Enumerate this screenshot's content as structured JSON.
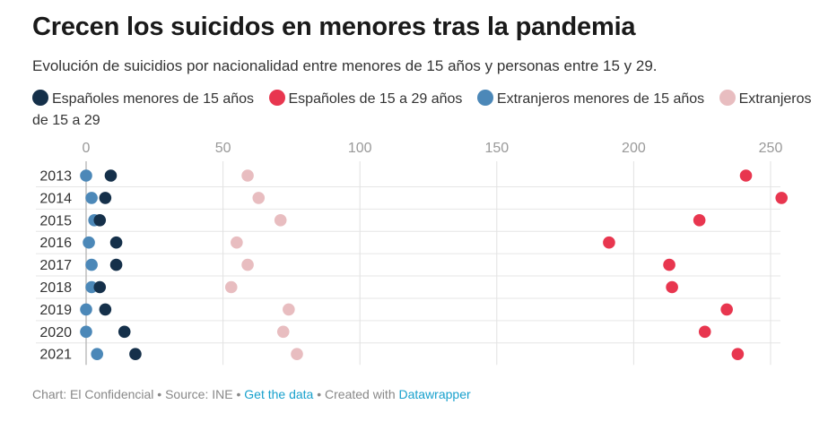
{
  "header": {
    "title": "Crecen los suicidos en menores tras la pandemia",
    "subtitle": "Evolución de suicidios por nacionalidad entre menores de 15 años y personas entre 15 y 29."
  },
  "footer": {
    "chart_credit": "Chart: El Confidencial",
    "separator1": " • ",
    "source": "Source: INE",
    "separator2": " • ",
    "get_data_link": "Get the data",
    "separator3": " • ",
    "created_with": "Created with ",
    "datawrapper_link": "Datawrapper"
  },
  "chart_data": {
    "type": "scatter",
    "title": "Crecen los suicidos en menores tras la pandemia",
    "subtitle": "Evolución de suicidios por nacionalidad entre menores de 15 años y personas entre 15 y 29.",
    "xlabel": "",
    "ylabel": "",
    "xlim": [
      0,
      260
    ],
    "xticks": [
      0,
      50,
      100,
      150,
      200,
      250
    ],
    "grid": true,
    "legend_position": "top",
    "categories": [
      "2013",
      "2014",
      "2015",
      "2016",
      "2017",
      "2018",
      "2019",
      "2020",
      "2021"
    ],
    "series": [
      {
        "name": "Españoles menores de 15 años",
        "color": "#15304a",
        "values": [
          9,
          7,
          5,
          11,
          11,
          5,
          7,
          14,
          18
        ]
      },
      {
        "name": "Españoles de 15 a 29 años",
        "color": "#e8364f",
        "values": [
          241,
          254,
          224,
          191,
          213,
          214,
          234,
          226,
          238
        ]
      },
      {
        "name": "Extranjeros menores de 15 años",
        "color": "#4c88b8",
        "values": [
          0,
          2,
          3,
          1,
          2,
          2,
          0,
          0,
          4
        ]
      },
      {
        "name": "Extranjeros de 15 a 29",
        "color": "#e8bdc0",
        "values": [
          59,
          63,
          71,
          55,
          59,
          53,
          74,
          72,
          77
        ]
      }
    ]
  }
}
